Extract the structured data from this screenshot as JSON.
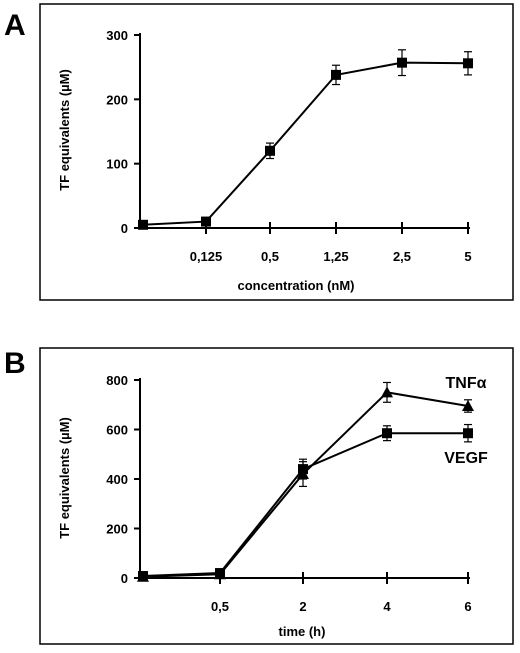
{
  "panels": [
    {
      "letter": "A",
      "chart_data": {
        "type": "line",
        "title": "",
        "xlabel": "concentration (nM)",
        "ylabel": "TF equivalents (µM)",
        "ylim": [
          0,
          300
        ],
        "yticks": [
          "0",
          "100",
          "200",
          "300"
        ],
        "categories": [
          "",
          "0,125",
          "0,5",
          "1,25",
          "2,5",
          "5"
        ],
        "grid": false,
        "legend": "none",
        "series": [
          {
            "label": "",
            "marker": "square",
            "values": [
              5,
              10,
              120,
              238,
              257,
              256
            ],
            "errors": [
              2,
              3,
              12,
              15,
              20,
              18
            ]
          }
        ]
      }
    },
    {
      "letter": "B",
      "chart_data": {
        "type": "line",
        "title": "",
        "xlabel": "time (h)",
        "ylabel": "TF equivalents (µM)",
        "ylim": [
          0,
          800
        ],
        "yticks": [
          "0",
          "200",
          "400",
          "600",
          "800"
        ],
        "categories": [
          "",
          "0,5",
          "2",
          "4",
          "6"
        ],
        "grid": false,
        "legend": "inline-right",
        "series": [
          {
            "label": "TNFα",
            "marker": "triangle",
            "values": [
              5,
              15,
              420,
              750,
              695
            ],
            "errors": [
              3,
              5,
              50,
              40,
              25
            ]
          },
          {
            "label": "VEGF",
            "marker": "square",
            "values": [
              8,
              20,
              440,
              585,
              585
            ],
            "errors": [
              3,
              5,
              40,
              30,
              35
            ]
          }
        ]
      }
    }
  ]
}
